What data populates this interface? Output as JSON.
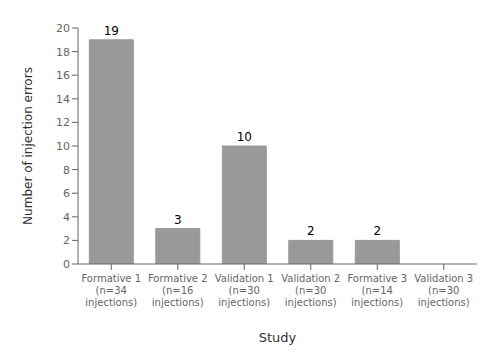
{
  "chart_data": {
    "type": "bar",
    "categories": [
      "Formative 1\n(n=34\ninjections)",
      "Formative 2\n(n=16\ninjections)",
      "Validation 1\n(n=30\ninjections)",
      "Validation 2\n(n=30\ninjections)",
      "Formative 3\n(n=14\ninjections)",
      "Validation 3\n(n=30\ninjections)"
    ],
    "values": [
      19,
      3,
      10,
      2,
      2,
      0
    ],
    "color": "#999999",
    "ylabel": "Number of injection errors",
    "xlabel": "Study",
    "ylim": [
      0,
      20
    ],
    "yticks": [
      0,
      2,
      4,
      6,
      8,
      10,
      12,
      14,
      16,
      18,
      20
    ],
    "data_labels": true,
    "grid": false
  }
}
